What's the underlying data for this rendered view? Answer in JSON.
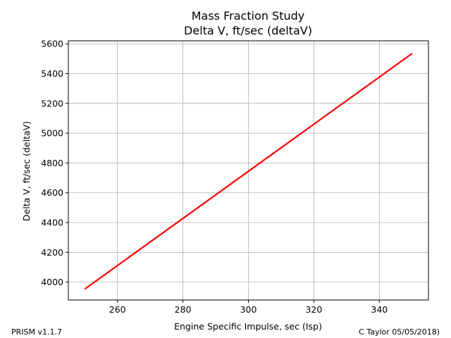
{
  "chart_data": {
    "type": "line",
    "title": [
      "Mass Fraction Study",
      "Delta V, ft/sec (deltaV)"
    ],
    "xlabel": "Engine Specific Impulse, sec (Isp)",
    "ylabel": "Delta V, ft/sec (deltaV)",
    "xlim": [
      245,
      355
    ],
    "ylim": [
      3880,
      5620
    ],
    "x_ticks": [
      260,
      280,
      300,
      320,
      340
    ],
    "y_ticks": [
      4000,
      4200,
      4400,
      4600,
      4800,
      5000,
      5200,
      5400,
      5600
    ],
    "grid": true,
    "series": [
      {
        "color": "#ff0000",
        "x": [
          250,
          350
        ],
        "y": [
          3953,
          5535
        ]
      }
    ]
  },
  "footer": {
    "left": "PRISM v1.1.7",
    "right": "C Taylor 05/05/2018)"
  }
}
